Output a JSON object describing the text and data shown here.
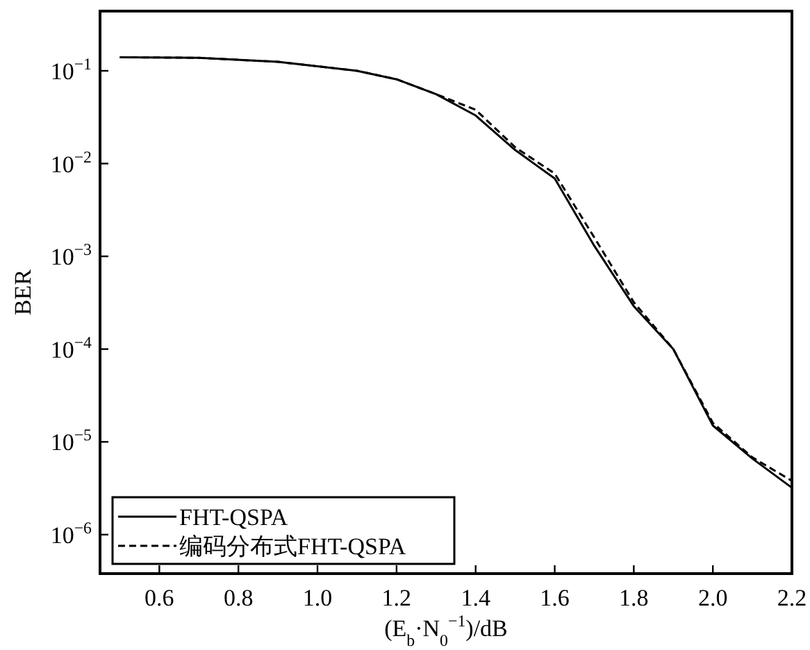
{
  "chart_data": {
    "type": "line",
    "xlabel": "(E$_{b}$·N$_{0}$$^{−1}$)/dB",
    "ylabel": "BER",
    "log": "y",
    "x": [
      0.5,
      0.7,
      0.9,
      1.1,
      1.2,
      1.3,
      1.4,
      1.5,
      1.6,
      1.7,
      1.8,
      1.9,
      2.0,
      2.1,
      2.2
    ],
    "series": [
      {
        "name": "FHT-QSPA",
        "color": "#000000",
        "line_style": "solid",
        "values": [
          0.14,
          0.138,
          0.125,
          0.1,
          0.081,
          0.056,
          0.033,
          0.014,
          0.0069,
          0.0013,
          0.00029,
          0.0001,
          1.5e-05,
          6.6e-06,
          3.2e-06
        ]
      },
      {
        "name": "编码分布式FHT-QSPA",
        "color": "#000000",
        "line_style": "dashed",
        "values": [
          0.14,
          0.138,
          0.125,
          0.1,
          0.081,
          0.056,
          0.038,
          0.015,
          0.0078,
          0.0016,
          0.00032,
          0.0001,
          1.6e-05,
          6.8e-06,
          3.8e-06
        ]
      }
    ],
    "xlim": [
      0.45,
      2.2
    ],
    "xticks": [
      {
        "value": 0.6,
        "label": "0.6"
      },
      {
        "value": 0.8,
        "label": "0.8"
      },
      {
        "value": 1.0,
        "label": "1.0"
      },
      {
        "value": 1.2,
        "label": "1.2"
      },
      {
        "value": 1.4,
        "label": "1.4"
      },
      {
        "value": 1.6,
        "label": "1.6"
      },
      {
        "value": 1.8,
        "label": "1.8"
      },
      {
        "value": 2.0,
        "label": "2.0"
      },
      {
        "value": 2.2,
        "label": "2.2"
      }
    ],
    "ylim": [
      3.8e-07,
      0.44
    ],
    "yticks": [
      {
        "value": 0.1,
        "label": "10$^{−1}$"
      },
      {
        "value": 0.01,
        "label": "10$^{−2}$"
      },
      {
        "value": 0.001,
        "label": "10$^{−3}$"
      },
      {
        "value": 0.0001,
        "label": "10$^{−4}$"
      },
      {
        "value": 1e-05,
        "label": "10$^{−5}$"
      },
      {
        "value": 1e-06,
        "label": "10$^{−6}$"
      }
    ],
    "grid": false,
    "legend": "bottom left"
  }
}
